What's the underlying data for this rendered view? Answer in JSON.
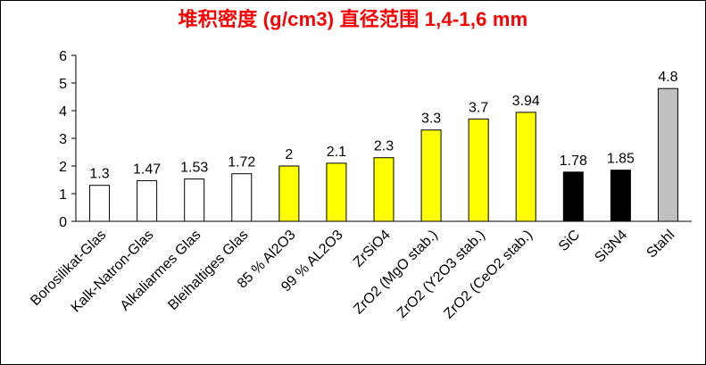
{
  "chart_data": {
    "type": "bar",
    "title": "堆积密度 (g/cm3) 直径范围 1,4-1,6 mm",
    "xlabel": "",
    "ylabel": "",
    "ylim": [
      0,
      6
    ],
    "yticks": [
      0,
      1,
      2,
      3,
      4,
      5,
      6
    ],
    "grid": false,
    "categories": [
      "Borosilikat-Glas",
      "Kalk-Natron-Glas",
      "Alkaliarmes Glas",
      "Bleihaltiges Glas",
      "85 % Al2O3",
      "99 % AL2O3",
      "ZrSiO4",
      "ZrO2 (MgO stab.)",
      "ZrO2 (Y2O3 stab.)",
      "ZrO2 (CeO2 stab.)",
      "SiC",
      "Si3N4",
      "Stahl"
    ],
    "values": [
      1.3,
      1.47,
      1.53,
      1.72,
      2,
      2.1,
      2.3,
      3.3,
      3.7,
      3.94,
      1.78,
      1.85,
      4.8
    ],
    "data_labels": [
      "1.3",
      "1.47",
      "1.53",
      "1.72",
      "2",
      "2.1",
      "2.3",
      "3.3",
      "3.7",
      "3.94",
      "1.78",
      "1.85",
      "4.8"
    ],
    "bar_colors": [
      "#ffffff",
      "#ffffff",
      "#ffffff",
      "#ffffff",
      "#ffff00",
      "#ffff00",
      "#ffff00",
      "#ffff00",
      "#ffff00",
      "#ffff00",
      "#000000",
      "#000000",
      "#c0c0c0"
    ]
  }
}
